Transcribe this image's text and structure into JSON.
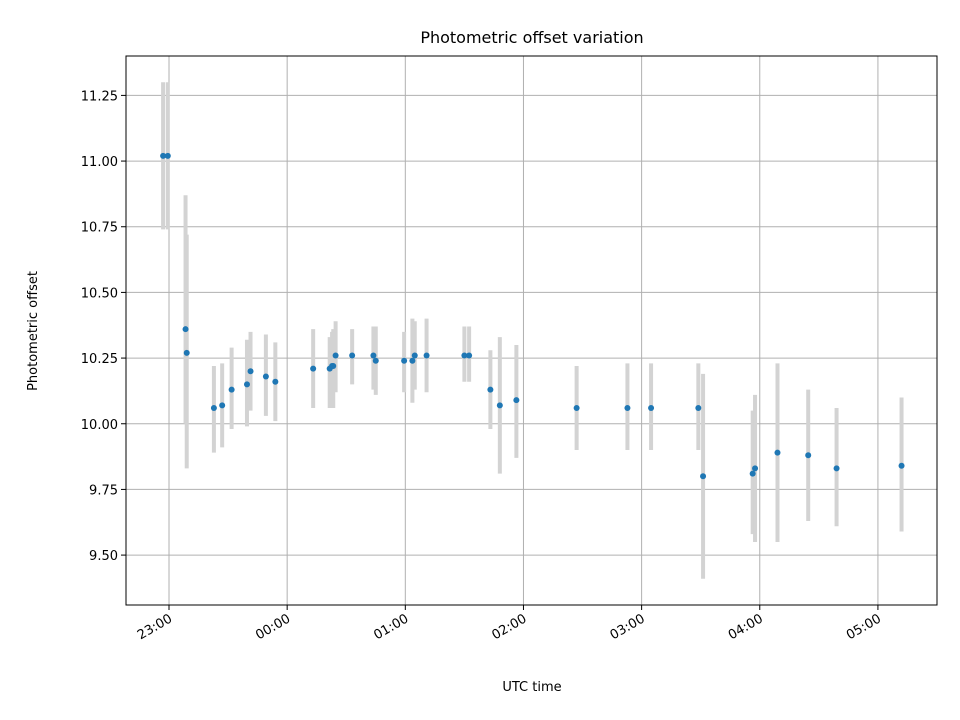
{
  "chart_data": {
    "type": "scatter",
    "title": "Photometric offset variation",
    "xlabel": "UTC time",
    "ylabel": "Photometric offset",
    "x_unit": "UTC hh:mm (hours after midnight; values near 23 precede midnight)",
    "xlim": [
      -1.364,
      5.5
    ],
    "ylim": [
      9.31,
      11.4
    ],
    "grid": true,
    "xticks": [
      {
        "label": "23:00",
        "value": -1.0
      },
      {
        "label": "00:00",
        "value": 0.0
      },
      {
        "label": "01:00",
        "value": 1.0
      },
      {
        "label": "02:00",
        "value": 2.0
      },
      {
        "label": "03:00",
        "value": 3.0
      },
      {
        "label": "04:00",
        "value": 4.0
      },
      {
        "label": "05:00",
        "value": 5.0
      }
    ],
    "yticks": [
      {
        "label": "9.50",
        "value": 9.5
      },
      {
        "label": "9.75",
        "value": 9.75
      },
      {
        "label": "10.00",
        "value": 10.0
      },
      {
        "label": "10.25",
        "value": 10.25
      },
      {
        "label": "10.50",
        "value": 10.5
      },
      {
        "label": "10.75",
        "value": 10.75
      },
      {
        "label": "11.00",
        "value": 11.0
      },
      {
        "label": "11.25",
        "value": 11.25
      }
    ],
    "colors": {
      "points": "#1f77b4",
      "errorbars": "#d3d3d3",
      "grid": "#b0b0b0"
    },
    "series": [
      {
        "points": [
          {
            "x": -1.05,
            "y": 11.02,
            "lo": 10.74,
            "hi": 11.3
          },
          {
            "x": -1.01,
            "y": 11.02,
            "lo": 10.74,
            "hi": 11.3
          },
          {
            "x": -0.86,
            "y": 10.36,
            "lo": 10.0,
            "hi": 10.87
          },
          {
            "x": -0.85,
            "y": 10.27,
            "lo": 9.83,
            "hi": 10.72
          },
          {
            "x": -0.62,
            "y": 10.06,
            "lo": 9.89,
            "hi": 10.22
          },
          {
            "x": -0.55,
            "y": 10.07,
            "lo": 9.91,
            "hi": 10.23
          },
          {
            "x": -0.47,
            "y": 10.13,
            "lo": 9.98,
            "hi": 10.29
          },
          {
            "x": -0.34,
            "y": 10.15,
            "lo": 9.99,
            "hi": 10.32
          },
          {
            "x": -0.31,
            "y": 10.2,
            "lo": 10.05,
            "hi": 10.35
          },
          {
            "x": -0.18,
            "y": 10.18,
            "lo": 10.03,
            "hi": 10.34
          },
          {
            "x": -0.1,
            "y": 10.16,
            "lo": 10.01,
            "hi": 10.31
          },
          {
            "x": 0.22,
            "y": 10.21,
            "lo": 10.06,
            "hi": 10.36
          },
          {
            "x": 0.36,
            "y": 10.21,
            "lo": 10.06,
            "hi": 10.33
          },
          {
            "x": 0.38,
            "y": 10.22,
            "lo": 10.07,
            "hi": 10.35
          },
          {
            "x": 0.39,
            "y": 10.22,
            "lo": 10.06,
            "hi": 10.36
          },
          {
            "x": 0.41,
            "y": 10.26,
            "lo": 10.12,
            "hi": 10.39
          },
          {
            "x": 0.55,
            "y": 10.26,
            "lo": 10.15,
            "hi": 10.36
          },
          {
            "x": 0.73,
            "y": 10.26,
            "lo": 10.13,
            "hi": 10.37
          },
          {
            "x": 0.75,
            "y": 10.24,
            "lo": 10.11,
            "hi": 10.37
          },
          {
            "x": 0.99,
            "y": 10.24,
            "lo": 10.12,
            "hi": 10.35
          },
          {
            "x": 1.06,
            "y": 10.24,
            "lo": 10.08,
            "hi": 10.4
          },
          {
            "x": 1.08,
            "y": 10.26,
            "lo": 10.13,
            "hi": 10.39
          },
          {
            "x": 1.18,
            "y": 10.26,
            "lo": 10.12,
            "hi": 10.4
          },
          {
            "x": 1.5,
            "y": 10.26,
            "lo": 10.16,
            "hi": 10.37
          },
          {
            "x": 1.54,
            "y": 10.26,
            "lo": 10.16,
            "hi": 10.37
          },
          {
            "x": 1.72,
            "y": 10.13,
            "lo": 9.98,
            "hi": 10.28
          },
          {
            "x": 1.8,
            "y": 10.07,
            "lo": 9.81,
            "hi": 10.33
          },
          {
            "x": 1.94,
            "y": 10.09,
            "lo": 9.87,
            "hi": 10.3
          },
          {
            "x": 2.45,
            "y": 10.06,
            "lo": 9.9,
            "hi": 10.22
          },
          {
            "x": 2.88,
            "y": 10.06,
            "lo": 9.9,
            "hi": 10.23
          },
          {
            "x": 3.08,
            "y": 10.06,
            "lo": 9.9,
            "hi": 10.23
          },
          {
            "x": 3.48,
            "y": 10.06,
            "lo": 9.9,
            "hi": 10.23
          },
          {
            "x": 3.52,
            "y": 9.8,
            "lo": 9.41,
            "hi": 10.19
          },
          {
            "x": 3.94,
            "y": 9.81,
            "lo": 9.58,
            "hi": 10.05
          },
          {
            "x": 3.96,
            "y": 9.83,
            "lo": 9.55,
            "hi": 10.11
          },
          {
            "x": 4.15,
            "y": 9.89,
            "lo": 9.55,
            "hi": 10.23
          },
          {
            "x": 4.41,
            "y": 9.88,
            "lo": 9.63,
            "hi": 10.13
          },
          {
            "x": 4.65,
            "y": 9.83,
            "lo": 9.61,
            "hi": 10.06
          },
          {
            "x": 5.2,
            "y": 9.84,
            "lo": 9.59,
            "hi": 10.1
          }
        ]
      }
    ]
  }
}
